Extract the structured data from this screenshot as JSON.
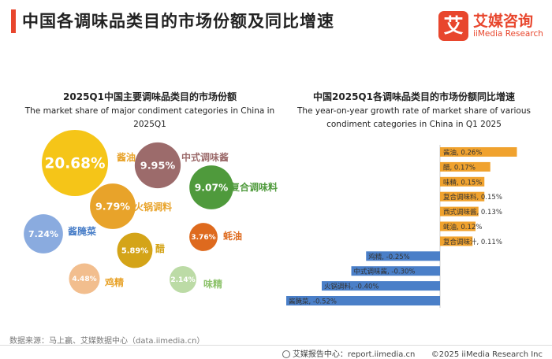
{
  "header": {
    "title": "中国各调味品类目的市场份额及同比增速",
    "logo_cn": "艾媒咨询",
    "logo_en": "iiMedia Research",
    "logo_mark": "艾"
  },
  "left_chart": {
    "title_cn": "2025Q1中国主要调味品类目的市场份额",
    "title_en": "The market share of major condiment categories in China in 2025Q1"
  },
  "right_chart": {
    "title_cn": "中国2025Q1各调味品类目的市场份额同比增速",
    "title_en_line1": "The year-on-year growth rate of market share of various",
    "title_en_line2": "condiment categories in China in Q1 2025"
  },
  "footer": {
    "source": "数据来源：马上赢、艾媒数据中心（data.iimedia.cn）",
    "report": "艾媒报告中心：report.iimedia.cn",
    "copyright": "©2025  iiMedia Research  Inc"
  },
  "chart_data": [
    {
      "type": "bubble",
      "title": "2025Q1中国主要调味品类目的市场份额",
      "subtitle": "The market share of major condiment categories in China in 2025Q1",
      "points": [
        {
          "name": "酱油",
          "label": "20.68%",
          "value": 20.68,
          "color": "#f5c518"
        },
        {
          "name": "中式调味酱",
          "label": "9.95%",
          "value": 9.95,
          "color": "#9c6b6b"
        },
        {
          "name": "复合调味料",
          "label": "9.07%",
          "value": 9.07,
          "color": "#4f9a3c"
        },
        {
          "name": "火锅调料",
          "label": "9.79%",
          "value": 9.79,
          "color": "#e8a32a"
        },
        {
          "name": "酱腌菜",
          "label": "7.24%",
          "value": 7.24,
          "color": "#8aabdf"
        },
        {
          "name": "蚝油",
          "label": "3.76%",
          "value": 3.76,
          "color": "#de6a1e"
        },
        {
          "name": "醋",
          "label": "5.89%",
          "value": 5.89,
          "color": "#d4a418"
        },
        {
          "name": "鸡精",
          "label": "4.48%",
          "value": 4.48,
          "color": "#f2be8e"
        },
        {
          "name": "味精",
          "label": "2.14%",
          "value": 2.14,
          "color": "#bcdba6"
        }
      ]
    },
    {
      "type": "bar",
      "orientation": "horizontal",
      "title": "中国2025Q1各调味品类目的市场份额同比增速",
      "subtitle": "The year-on-year growth rate of market share of various condiment categories in China in Q1 2025",
      "categories": [
        "酱油",
        "醋",
        "味精",
        "复合调味料",
        "西式调味酱",
        "蚝油",
        "复合调味汁",
        "鸡精",
        "中式调味酱",
        "火锅调料",
        "酱腌菜"
      ],
      "values": [
        0.26,
        0.17,
        0.15,
        0.15,
        0.13,
        0.12,
        0.11,
        -0.25,
        -0.3,
        -0.4,
        -0.52
      ],
      "labels": [
        "酱油, 0.26%",
        "醋, 0.17%",
        "味精, 0.15%",
        "复合调味料, 0.15%",
        "西式调味酱, 0.13%",
        "蚝油, 0.12%",
        "复合调味汁, 0.11%",
        "鸡精, -0.25%",
        "中式调味酱, -0.30%",
        "火锅调料, -0.40%",
        "酱腌菜, -0.52%"
      ],
      "unit": "%",
      "positive_color": "#f0a22e",
      "negative_color": "#4a7fc8"
    }
  ]
}
